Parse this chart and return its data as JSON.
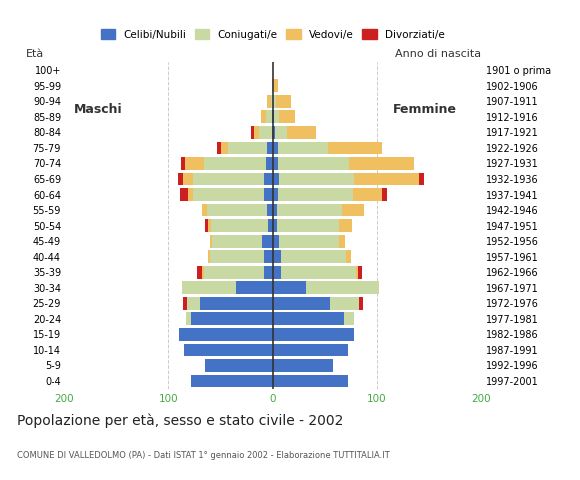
{
  "age_groups": [
    "0-4",
    "5-9",
    "10-14",
    "15-19",
    "20-24",
    "25-29",
    "30-34",
    "35-39",
    "40-44",
    "45-49",
    "50-54",
    "55-59",
    "60-64",
    "65-69",
    "70-74",
    "75-79",
    "80-84",
    "85-89",
    "90-94",
    "95-99",
    "100+"
  ],
  "birth_years": [
    "1997-2001",
    "1992-1996",
    "1987-1991",
    "1982-1986",
    "1977-1981",
    "1972-1976",
    "1967-1971",
    "1962-1966",
    "1957-1961",
    "1952-1956",
    "1947-1951",
    "1942-1946",
    "1937-1941",
    "1932-1936",
    "1927-1931",
    "1922-1926",
    "1917-1921",
    "1912-1916",
    "1907-1911",
    "1902-1906",
    "1901 o prima"
  ],
  "males": {
    "celibi": [
      78,
      65,
      85,
      90,
      78,
      70,
      35,
      8,
      8,
      10,
      4,
      5,
      8,
      8,
      6,
      5,
      1,
      1,
      0,
      0,
      0
    ],
    "coniugati": [
      0,
      0,
      0,
      0,
      5,
      12,
      52,
      58,
      52,
      48,
      55,
      58,
      68,
      68,
      60,
      38,
      12,
      5,
      2,
      0,
      0
    ],
    "vedovi": [
      0,
      0,
      0,
      0,
      0,
      0,
      0,
      2,
      2,
      2,
      3,
      5,
      5,
      10,
      18,
      6,
      5,
      5,
      3,
      1,
      0
    ],
    "divorziati": [
      0,
      0,
      0,
      0,
      0,
      4,
      0,
      4,
      0,
      0,
      3,
      0,
      8,
      5,
      4,
      4,
      3,
      0,
      0,
      0,
      0
    ]
  },
  "females": {
    "nubili": [
      72,
      58,
      72,
      78,
      68,
      55,
      32,
      8,
      8,
      6,
      4,
      4,
      5,
      6,
      5,
      5,
      2,
      1,
      0,
      0,
      0
    ],
    "coniugate": [
      0,
      0,
      0,
      0,
      10,
      28,
      70,
      72,
      62,
      58,
      60,
      62,
      72,
      72,
      68,
      48,
      12,
      5,
      3,
      0,
      0
    ],
    "vedove": [
      0,
      0,
      0,
      0,
      0,
      0,
      0,
      2,
      5,
      5,
      12,
      22,
      28,
      62,
      62,
      52,
      28,
      15,
      15,
      5,
      0
    ],
    "divorziate": [
      0,
      0,
      0,
      0,
      0,
      4,
      0,
      4,
      0,
      0,
      0,
      0,
      5,
      5,
      0,
      0,
      0,
      0,
      0,
      0,
      0
    ]
  },
  "colors": {
    "celibi": "#4472c4",
    "coniugati": "#c8d9a4",
    "vedovi": "#f0c060",
    "divorziati": "#cc2020"
  },
  "xlim": 200,
  "title": "Popolazione per età, sesso e stato civile - 2002",
  "subtitle": "COMUNE DI VALLEDOLMO (PA) - Dati ISTAT 1° gennaio 2002 - Elaborazione TUTTITALIA.IT",
  "ylabel_left": "Età",
  "ylabel_right": "Anno di nascita",
  "legend_labels": [
    "Celibi/Nubili",
    "Coniugati/e",
    "Vedovi/e",
    "Divorziati/e"
  ],
  "bg_color": "#ffffff",
  "maschi_label": "Maschi",
  "femmine_label": "Femmine"
}
